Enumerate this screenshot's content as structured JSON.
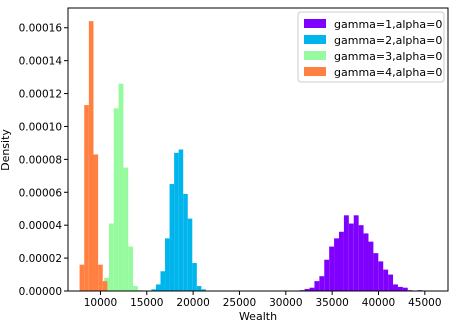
{
  "chart_data": {
    "type": "histogram",
    "xlabel": "Wealth",
    "ylabel": "Density",
    "xlim": [
      6500,
      47500
    ],
    "ylim": [
      0,
      0.000172
    ],
    "x_ticks": [
      10000,
      15000,
      20000,
      25000,
      30000,
      35000,
      40000,
      45000
    ],
    "x_tick_labels": [
      "10000",
      "15000",
      "20000",
      "25000",
      "30000",
      "35000",
      "40000",
      "45000"
    ],
    "y_ticks": [
      0,
      2e-05,
      4e-05,
      6e-05,
      8e-05,
      0.0001,
      0.00012,
      0.00014,
      0.00016
    ],
    "y_tick_labels": [
      "0.00000",
      "0.00002",
      "0.00004",
      "0.00006",
      "0.00008",
      "0.00010",
      "0.00012",
      "0.00014",
      "0.00016"
    ],
    "legend_position": "top-right",
    "series": [
      {
        "name": "gamma=1,alpha=0",
        "color": "#8000ff",
        "bin_start": 31500,
        "bin_width": 530,
        "values": [
          5e-07,
          1.2e-06,
          2e-06,
          6e-06,
          9e-06,
          1.9e-05,
          2.7e-05,
          3.2e-05,
          3.6e-05,
          4.6e-05,
          4.1e-05,
          4.6e-05,
          4e-05,
          3.5e-05,
          3e-05,
          2.3e-05,
          1.8e-05,
          1.3e-05,
          1e-05,
          4e-06,
          2.5e-06,
          2e-06,
          5e-07,
          2e-07,
          5e-07
        ]
      },
      {
        "name": "gamma=2,alpha=0",
        "color": "#00b5eb",
        "bin_start": 15500,
        "bin_width": 490,
        "values": [
          1e-06,
          4e-06,
          1.2e-05,
          3.2e-05,
          6.5e-05,
          8.4e-05,
          8.6e-05,
          5.9e-05,
          4.4e-05,
          1.7e-05,
          3e-06,
          1e-06
        ]
      },
      {
        "name": "gamma=3,alpha=0",
        "color": "#95fb9e",
        "bin_start": 10400,
        "bin_width": 520,
        "values": [
          8e-06,
          4.1e-05,
          0.000111,
          0.000126,
          7.5e-05,
          2.7e-05,
          3e-06,
          5e-07
        ]
      },
      {
        "name": "gamma=4,alpha=0",
        "color": "#ff8040",
        "bin_start": 7750,
        "bin_width": 500,
        "values": [
          1.6e-05,
          0.000113,
          0.000164,
          8.3e-05,
          1.6e-05,
          6e-06
        ]
      }
    ]
  }
}
